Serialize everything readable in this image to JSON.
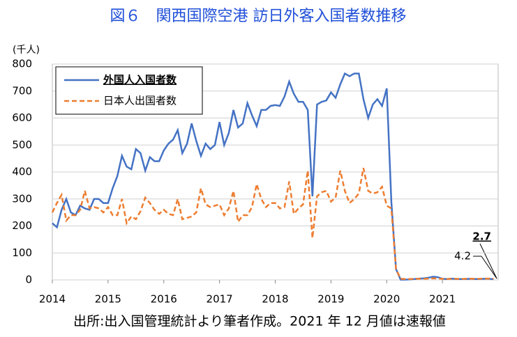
{
  "chart_data": {
    "type": "line",
    "title": "図６　関西国際空港 訪日外客入国者数推移",
    "y_label": "(千人)",
    "source": "出所:出入国管理統計より筆者作成。2021 年 12 月値は速報値",
    "x": [
      2014,
      2014.083,
      2014.167,
      2014.25,
      2014.333,
      2014.417,
      2014.5,
      2014.583,
      2014.667,
      2014.75,
      2014.833,
      2014.917,
      2015,
      2015.083,
      2015.167,
      2015.25,
      2015.333,
      2015.417,
      2015.5,
      2015.583,
      2015.667,
      2015.75,
      2015.833,
      2015.917,
      2016,
      2016.083,
      2016.167,
      2016.25,
      2016.333,
      2016.417,
      2016.5,
      2016.583,
      2016.667,
      2016.75,
      2016.833,
      2016.917,
      2017,
      2017.083,
      2017.167,
      2017.25,
      2017.333,
      2017.417,
      2017.5,
      2017.583,
      2017.667,
      2017.75,
      2017.833,
      2017.917,
      2018,
      2018.083,
      2018.167,
      2018.25,
      2018.333,
      2018.417,
      2018.5,
      2018.583,
      2018.667,
      2018.75,
      2018.833,
      2018.917,
      2019,
      2019.083,
      2019.167,
      2019.25,
      2019.333,
      2019.417,
      2019.5,
      2019.583,
      2019.667,
      2019.75,
      2019.833,
      2019.917,
      2020,
      2020.083,
      2020.167,
      2020.25,
      2020.333,
      2020.417,
      2020.5,
      2020.583,
      2020.667,
      2020.75,
      2020.833,
      2020.917,
      2021,
      2021.083,
      2021.167,
      2021.25,
      2021.333,
      2021.417,
      2021.5,
      2021.583,
      2021.667,
      2021.75,
      2021.833,
      2021.917
    ],
    "series": [
      {
        "name": "外国人入国者数",
        "color": "#4472c4",
        "style": "solid",
        "values": [
          210,
          195,
          260,
          300,
          250,
          240,
          275,
          265,
          260,
          300,
          300,
          285,
          285,
          340,
          385,
          460,
          420,
          410,
          485,
          470,
          405,
          455,
          440,
          440,
          480,
          505,
          520,
          555,
          470,
          505,
          580,
          515,
          460,
          505,
          485,
          500,
          585,
          500,
          545,
          630,
          565,
          580,
          655,
          610,
          570,
          630,
          630,
          645,
          648,
          645,
          680,
          735,
          690,
          660,
          660,
          630,
          310,
          650,
          660,
          665,
          695,
          675,
          725,
          765,
          755,
          765,
          765,
          670,
          600,
          650,
          670,
          645,
          710,
          290,
          40,
          1,
          1,
          2,
          3,
          5,
          6,
          8,
          12,
          10,
          4,
          3,
          5,
          3,
          3,
          3,
          4,
          3,
          3,
          4,
          4,
          2.7
        ]
      },
      {
        "name": "日本人出国者数",
        "color": "#ed7d31",
        "style": "dashed",
        "values": [
          250,
          285,
          315,
          220,
          240,
          240,
          260,
          330,
          265,
          270,
          265,
          250,
          270,
          240,
          240,
          300,
          210,
          235,
          225,
          255,
          305,
          285,
          260,
          245,
          260,
          245,
          240,
          300,
          225,
          230,
          235,
          250,
          340,
          280,
          270,
          275,
          280,
          240,
          265,
          330,
          215,
          240,
          240,
          270,
          355,
          300,
          270,
          285,
          285,
          265,
          270,
          365,
          245,
          265,
          280,
          405,
          155,
          310,
          325,
          330,
          290,
          305,
          405,
          330,
          285,
          300,
          320,
          415,
          330,
          320,
          325,
          345,
          275,
          265,
          40,
          4,
          3,
          3,
          4,
          4,
          4,
          5,
          6,
          5,
          4,
          3,
          4,
          4,
          3,
          4,
          4,
          4,
          4,
          5,
          5,
          4.2
        ]
      }
    ],
    "xlim": [
      2014,
      2022
    ],
    "xticks": [
      2014,
      2015,
      2016,
      2017,
      2018,
      2019,
      2020,
      2021
    ],
    "ylim": [
      0,
      800
    ],
    "yticks": [
      0,
      100,
      200,
      300,
      400,
      500,
      600,
      700,
      800
    ],
    "grid": true,
    "legend": "upper-left"
  }
}
